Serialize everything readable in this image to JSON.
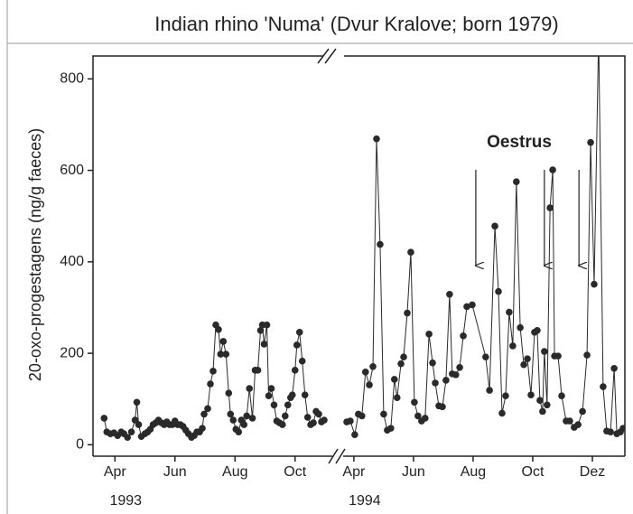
{
  "chart_data": [
    {
      "type": "line",
      "title": "Indian rhino 'Numa' (Dvur Kralove; born 1979)",
      "ylabel": "20-oxo-progestagens (ng/g faeces)",
      "xlabel": "1993",
      "ylim": [
        -25,
        850
      ],
      "yticks": [
        0,
        200,
        400,
        600,
        800
      ],
      "xlim": [
        3.27,
        11.06
      ],
      "xticks": [
        {
          "value": 4,
          "label": "Apr"
        },
        {
          "value": 6,
          "label": "Jun"
        },
        {
          "value": 8,
          "label": "Aug"
        },
        {
          "value": 10,
          "label": "Oct"
        }
      ],
      "series": [
        {
          "color": "#2a2a2a",
          "x": [
            3.64,
            3.73,
            3.85,
            3.97,
            4.09,
            4.21,
            4.3,
            4.42,
            4.55,
            4.67,
            4.73,
            4.79,
            4.88,
            5.0,
            5.09,
            5.18,
            5.27,
            5.36,
            5.45,
            5.55,
            5.64,
            5.73,
            5.82,
            5.91,
            6.0,
            6.09,
            6.18,
            6.27,
            6.36,
            6.45,
            6.55,
            6.64,
            6.73,
            6.82,
            6.91,
            6.97,
            7.09,
            7.18,
            7.27,
            7.36,
            7.45,
            7.52,
            7.61,
            7.7,
            7.79,
            7.85,
            7.94,
            8.03,
            8.12,
            8.21,
            8.3,
            8.39,
            8.48,
            8.58,
            8.67,
            8.76,
            8.85,
            8.91,
            8.97,
            9.06,
            9.12,
            9.21,
            9.3,
            9.39,
            9.48,
            9.58,
            9.67,
            9.76,
            9.85,
            9.91,
            10.0,
            10.06,
            10.15,
            10.24,
            10.33,
            10.42,
            10.52,
            10.61,
            10.7,
            10.79,
            10.88,
            10.97
          ],
          "values": [
            58,
            28,
            24,
            26,
            20,
            28,
            24,
            16,
            28,
            54,
            93,
            44,
            18,
            24,
            28,
            34,
            44,
            48,
            54,
            48,
            44,
            50,
            44,
            44,
            52,
            44,
            44,
            40,
            32,
            24,
            16,
            20,
            28,
            28,
            36,
            67,
            79,
            133,
            161,
            262,
            252,
            198,
            226,
            198,
            113,
            67,
            54,
            34,
            28,
            54,
            44,
            63,
            123,
            58,
            163,
            163,
            250,
            262,
            220,
            262,
            107,
            123,
            87,
            52,
            48,
            44,
            63,
            87,
            103,
            109,
            163,
            218,
            246,
            183,
            109,
            60,
            44,
            48,
            73,
            67,
            50,
            54
          ]
        }
      ]
    },
    {
      "type": "line",
      "xlabel": "1994",
      "annotation": "Oestrus",
      "oestrus_x": [
        8.09,
        10.39,
        11.55
      ],
      "ylim": [
        -25,
        850
      ],
      "xlim": [
        3.64,
        13.09
      ],
      "xticks": [
        {
          "value": 4,
          "label": "Apr"
        },
        {
          "value": 6,
          "label": "Jun"
        },
        {
          "value": 8,
          "label": "Aug"
        },
        {
          "value": 10,
          "label": "Oct"
        },
        {
          "value": 12,
          "label": "Dez"
        }
      ],
      "series": [
        {
          "color": "#2a2a2a",
          "x": [
            3.76,
            3.88,
            4.03,
            4.15,
            4.27,
            4.39,
            4.52,
            4.64,
            4.76,
            4.88,
            5.0,
            5.12,
            5.24,
            5.36,
            5.45,
            5.58,
            5.67,
            5.79,
            5.91,
            6.03,
            6.15,
            6.27,
            6.39,
            6.52,
            6.64,
            6.73,
            6.85,
            6.97,
            7.09,
            7.21,
            7.3,
            7.42,
            7.55,
            7.67,
            7.79,
            7.97,
            8.42,
            8.55,
            8.73,
            8.85,
            8.97,
            9.09,
            9.21,
            9.33,
            9.45,
            9.58,
            9.7,
            9.82,
            9.94,
            10.06,
            10.15,
            10.24,
            10.33,
            10.39,
            10.48,
            10.58,
            10.67,
            10.73,
            10.85,
            10.97,
            11.12,
            11.24,
            11.39,
            11.52,
            11.67,
            11.82,
            11.94,
            12.06,
            12.21,
            12.36,
            12.48,
            12.61,
            12.73,
            12.82,
            12.94,
            13.03
          ],
          "values": [
            50,
            52,
            22,
            67,
            63,
            159,
            131,
            171,
            669,
            438,
            67,
            32,
            36,
            143,
            103,
            177,
            192,
            288,
            421,
            93,
            63,
            52,
            58,
            242,
            179,
            135,
            85,
            83,
            141,
            329,
            155,
            153,
            169,
            238,
            302,
            306,
            192,
            119,
            478,
            335,
            69,
            107,
            290,
            216,
            575,
            256,
            175,
            188,
            109,
            246,
            250,
            97,
            73,
            204,
            87,
            518,
            601,
            194,
            194,
            107,
            52,
            52,
            38,
            44,
            73,
            196,
            661,
            351,
            900,
            127,
            30,
            28,
            167,
            24,
            28,
            36
          ]
        }
      ]
    }
  ]
}
